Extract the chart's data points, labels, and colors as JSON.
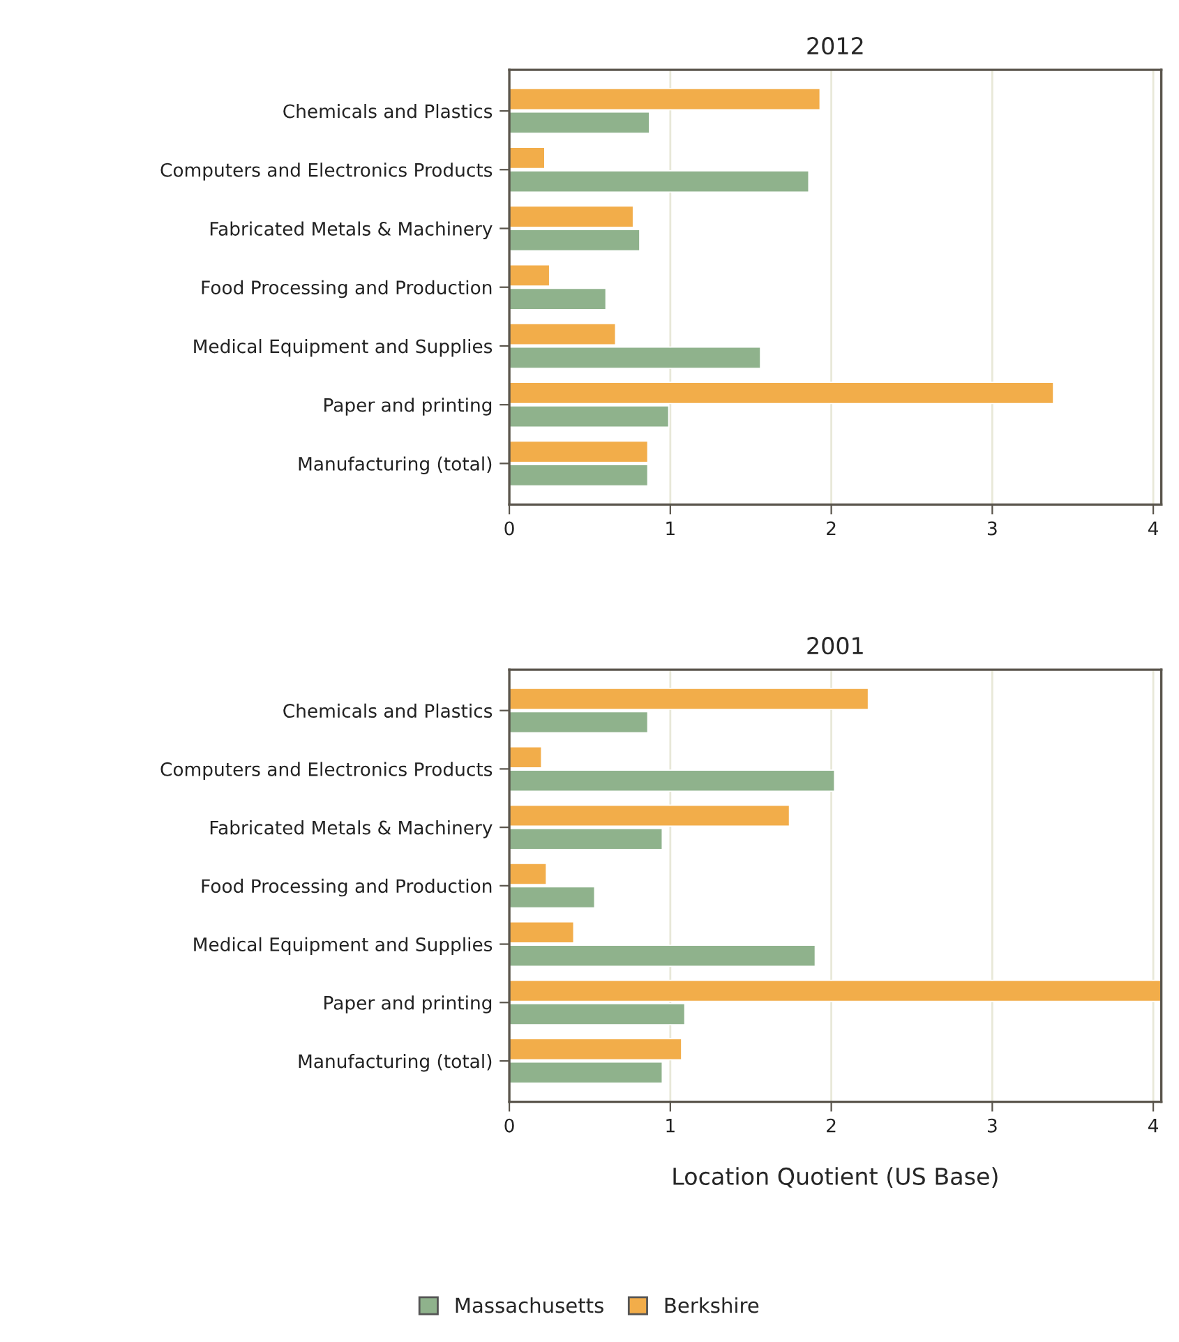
{
  "chart_data": [
    {
      "type": "bar",
      "orientation": "horizontal",
      "title": "2012",
      "categories": [
        "Chemicals and Plastics",
        "Computers and Electronics Products",
        "Fabricated Metals & Machinery",
        "Food Processing and Production",
        "Medical Equipment and Supplies",
        "Paper and printing",
        "Manufacturing (total)"
      ],
      "series": [
        {
          "name": "Massachusetts",
          "color": "#8fb28c",
          "values": [
            0.87,
            1.86,
            0.81,
            0.6,
            1.56,
            0.99,
            0.86
          ]
        },
        {
          "name": "Berkshire",
          "color": "#f2ad4a",
          "values": [
            1.93,
            0.22,
            0.77,
            0.25,
            0.66,
            3.38,
            0.86
          ]
        }
      ],
      "xlim": [
        0,
        4.05
      ],
      "xticks": [
        0,
        1,
        2,
        3,
        4
      ],
      "grid": "x",
      "legend": "bottom"
    },
    {
      "type": "bar",
      "orientation": "horizontal",
      "title": "2001",
      "xlabel": "Location Quotient (US Base)",
      "categories": [
        "Chemicals and Plastics",
        "Computers and Electronics Products",
        "Fabricated Metals & Machinery",
        "Food Processing and Production",
        "Medical Equipment and Supplies",
        "Paper and printing",
        "Manufacturing (total)"
      ],
      "series": [
        {
          "name": "Massachusetts",
          "color": "#8fb28c",
          "values": [
            0.86,
            2.02,
            0.95,
            0.53,
            1.9,
            1.09,
            0.95
          ]
        },
        {
          "name": "Berkshire",
          "color": "#f2ad4a",
          "values": [
            2.23,
            0.2,
            1.74,
            0.23,
            0.4,
            4.05,
            1.07
          ]
        }
      ],
      "xlim": [
        0,
        4.05
      ],
      "xticks": [
        0,
        1,
        2,
        3,
        4
      ],
      "grid": "x",
      "legend": "bottom"
    }
  ]
}
